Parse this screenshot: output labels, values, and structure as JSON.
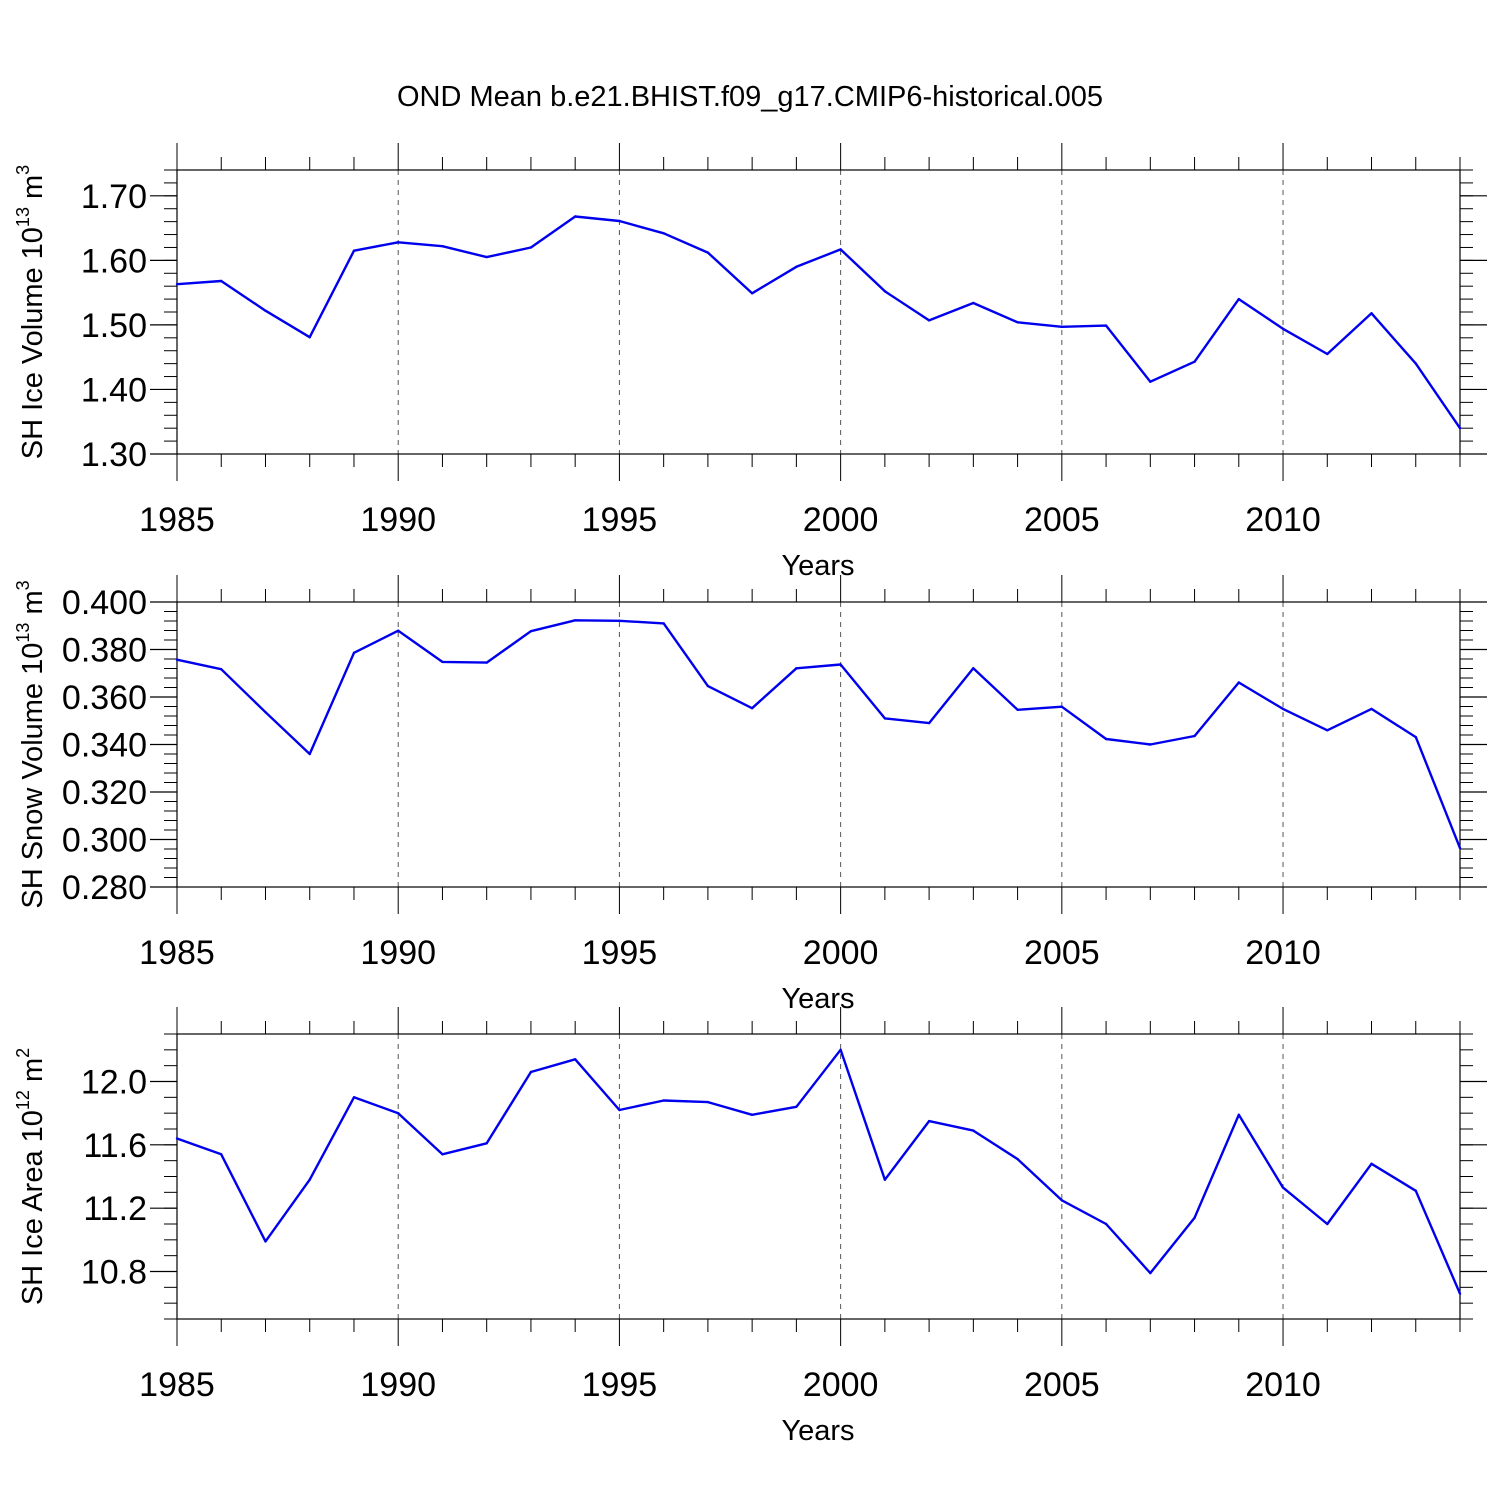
{
  "title": "OND Mean b.e21.BHIST.f09_g17.CMIP6-historical.005",
  "chart_data": [
    {
      "type": "line",
      "ylabel": "SH Ice Volume 10",
      "ylabel_exp": "13",
      "ylabel_unit": " m",
      "ylabel_unit_exp": "3",
      "xlabel": "Years",
      "xlim": [
        1985,
        2014
      ],
      "ylim": [
        1.3,
        1.74
      ],
      "yticks": [
        1.3,
        1.4,
        1.5,
        1.6,
        1.7
      ],
      "ytick_labels": [
        "1.30",
        "1.40",
        "1.50",
        "1.60",
        "1.70"
      ],
      "yminor_step": 0.02,
      "xticks": [
        1985,
        1990,
        1995,
        2000,
        2005,
        2010
      ],
      "xtick_labels": [
        "1985",
        "1990",
        "1995",
        "2000",
        "2005",
        "2010"
      ],
      "line_color": "#0000ee",
      "x": [
        1985,
        1986,
        1987,
        1988,
        1989,
        1990,
        1991,
        1992,
        1993,
        1994,
        1995,
        1996,
        1997,
        1998,
        1999,
        2000,
        2001,
        2002,
        2003,
        2004,
        2005,
        2006,
        2007,
        2008,
        2009,
        2010,
        2011,
        2012,
        2013,
        2014
      ],
      "values": [
        1.563,
        1.568,
        1.522,
        1.481,
        1.615,
        1.628,
        1.622,
        1.605,
        1.62,
        1.668,
        1.661,
        1.642,
        1.612,
        1.549,
        1.59,
        1.617,
        1.552,
        1.507,
        1.534,
        1.504,
        1.497,
        1.499,
        1.412,
        1.443,
        1.54,
        1.494,
        1.455,
        1.518,
        1.44,
        1.34
      ]
    },
    {
      "type": "line",
      "ylabel": "SH Snow Volume 10",
      "ylabel_exp": "13",
      "ylabel_unit": " m",
      "ylabel_unit_exp": "3",
      "xlabel": "Years",
      "xlim": [
        1985,
        2014
      ],
      "ylim": [
        0.28,
        0.4
      ],
      "yticks": [
        0.28,
        0.3,
        0.32,
        0.34,
        0.36,
        0.38,
        0.4
      ],
      "ytick_labels": [
        "0.280",
        "0.300",
        "0.320",
        "0.340",
        "0.360",
        "0.380",
        "0.400"
      ],
      "yminor_step": 0.004,
      "xticks": [
        1985,
        1990,
        1995,
        2000,
        2005,
        2010
      ],
      "xtick_labels": [
        "1985",
        "1990",
        "1995",
        "2000",
        "2005",
        "2010"
      ],
      "line_color": "#0000ee",
      "x": [
        1985,
        1986,
        1987,
        1988,
        1989,
        1990,
        1991,
        1992,
        1993,
        1994,
        1995,
        1996,
        1997,
        1998,
        1999,
        2000,
        2001,
        2002,
        2003,
        2004,
        2005,
        2006,
        2007,
        2008,
        2009,
        2010,
        2011,
        2012,
        2013,
        2014
      ],
      "values": [
        0.3757,
        0.3717,
        0.3536,
        0.336,
        0.3786,
        0.3879,
        0.3748,
        0.3745,
        0.3877,
        0.3923,
        0.3921,
        0.391,
        0.3646,
        0.3553,
        0.3721,
        0.3737,
        0.351,
        0.349,
        0.3721,
        0.3546,
        0.3559,
        0.3423,
        0.34,
        0.3436,
        0.3661,
        0.355,
        0.346,
        0.355,
        0.3431,
        0.2964
      ]
    },
    {
      "type": "line",
      "ylabel": "SH Ice Area 10",
      "ylabel_exp": "12",
      "ylabel_unit": " m",
      "ylabel_unit_exp": "2",
      "xlabel": "Years",
      "xlim": [
        1985,
        2014
      ],
      "ylim": [
        10.5,
        12.3
      ],
      "yticks": [
        10.8,
        11.2,
        11.6,
        12.0
      ],
      "ytick_labels": [
        "10.8",
        "11.2",
        "11.6",
        "12.0"
      ],
      "yminor_step": 0.1,
      "xticks": [
        1985,
        1990,
        1995,
        2000,
        2005,
        2010
      ],
      "xtick_labels": [
        "1985",
        "1990",
        "1995",
        "2000",
        "2005",
        "2010"
      ],
      "line_color": "#0000ee",
      "x": [
        1985,
        1986,
        1987,
        1988,
        1989,
        1990,
        1991,
        1992,
        1993,
        1994,
        1995,
        1996,
        1997,
        1998,
        1999,
        2000,
        2001,
        2002,
        2003,
        2004,
        2005,
        2006,
        2007,
        2008,
        2009,
        2010,
        2011,
        2012,
        2013,
        2014
      ],
      "values": [
        11.64,
        11.54,
        10.99,
        11.38,
        11.9,
        11.8,
        11.54,
        11.61,
        12.06,
        12.14,
        11.82,
        11.88,
        11.87,
        11.79,
        11.84,
        12.2,
        11.38,
        11.75,
        11.69,
        11.51,
        11.25,
        11.1,
        10.79,
        11.14,
        11.79,
        11.33,
        11.1,
        11.48,
        11.31,
        10.66
      ]
    }
  ]
}
